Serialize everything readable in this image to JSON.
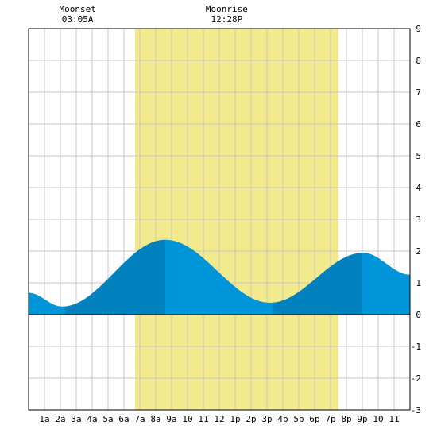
{
  "chart_data": {
    "type": "area",
    "title": "",
    "xlabel": "",
    "ylabel": "",
    "xlim": [
      0,
      24
    ],
    "ylim": [
      -3,
      9
    ],
    "grid": true,
    "x_ticks": [
      {
        "x": 1,
        "label": "1a"
      },
      {
        "x": 2,
        "label": "2a"
      },
      {
        "x": 3,
        "label": "3a"
      },
      {
        "x": 4,
        "label": "4a"
      },
      {
        "x": 5,
        "label": "5a"
      },
      {
        "x": 6,
        "label": "6a"
      },
      {
        "x": 7,
        "label": "7a"
      },
      {
        "x": 8,
        "label": "8a"
      },
      {
        "x": 9,
        "label": "9a"
      },
      {
        "x": 10,
        "label": "10"
      },
      {
        "x": 11,
        "label": "11"
      },
      {
        "x": 12,
        "label": "12"
      },
      {
        "x": 13,
        "label": "1p"
      },
      {
        "x": 14,
        "label": "2p"
      },
      {
        "x": 15,
        "label": "3p"
      },
      {
        "x": 16,
        "label": "4p"
      },
      {
        "x": 17,
        "label": "5p"
      },
      {
        "x": 18,
        "label": "6p"
      },
      {
        "x": 19,
        "label": "7p"
      },
      {
        "x": 20,
        "label": "8p"
      },
      {
        "x": 21,
        "label": "9p"
      },
      {
        "x": 22,
        "label": "10"
      },
      {
        "x": 23,
        "label": "11"
      }
    ],
    "y_ticks": [
      -3,
      -2,
      -1,
      0,
      1,
      2,
      3,
      4,
      5,
      6,
      7,
      8,
      9
    ],
    "daylight": {
      "start": 6.7,
      "end": 19.5,
      "color": "#f2ea8c"
    },
    "tide_extrema": [
      {
        "x": 0.0,
        "y": 0.68
      },
      {
        "x": 2.1,
        "y": 0.25
      },
      {
        "x": 8.6,
        "y": 2.35
      },
      {
        "x": 15.2,
        "y": 0.37
      },
      {
        "x": 21.05,
        "y": 1.94
      },
      {
        "x": 24.0,
        "y": 1.25
      }
    ],
    "band_breaks": [
      0,
      2.3,
      8.6,
      15.4,
      21.0,
      24
    ],
    "colors": {
      "light": "#0095d8",
      "dark": "#0080bc",
      "grid": "#c8c8c8",
      "axis": "#000000"
    },
    "moon": [
      {
        "label": "Moonset",
        "time": "03:05A",
        "x": 3.083
      },
      {
        "label": "Moonrise",
        "time": "12:28P",
        "x": 12.467
      }
    ]
  }
}
